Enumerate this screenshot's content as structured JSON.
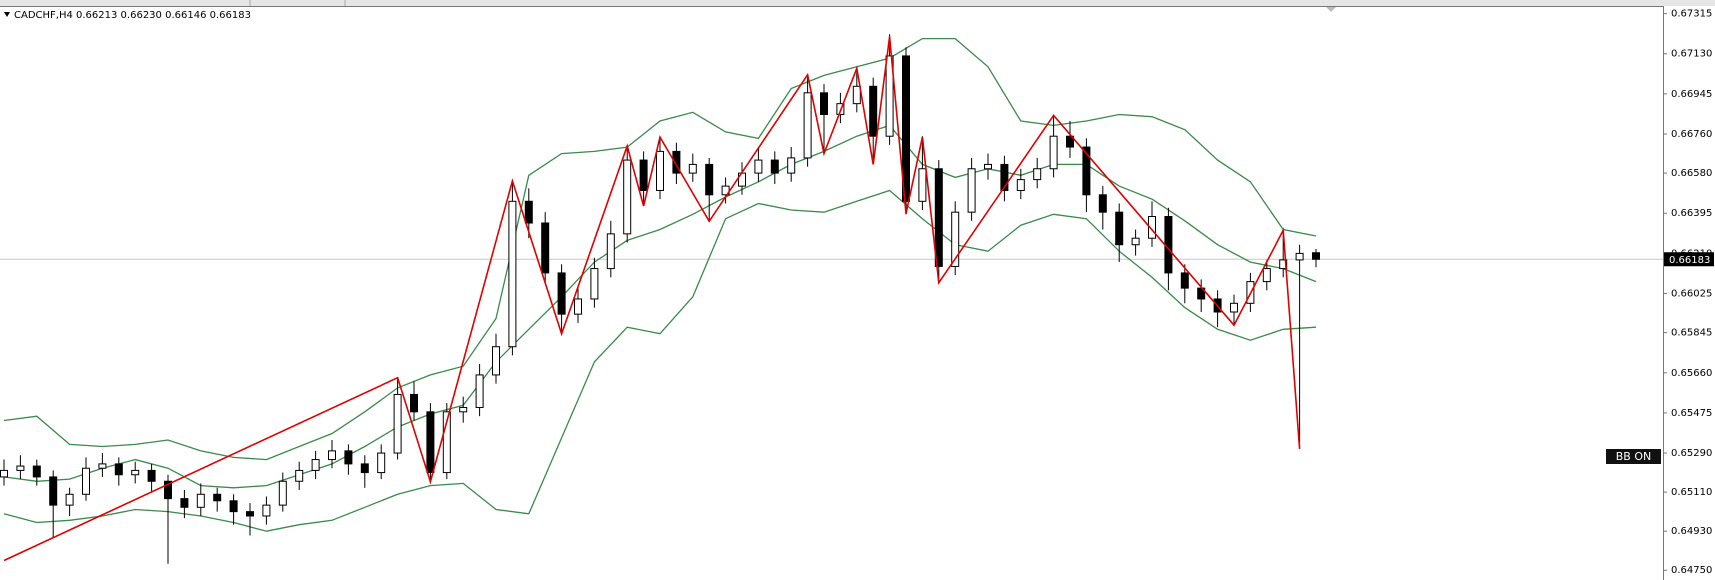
{
  "chart_data": {
    "type": "candlestick",
    "title": "CADCHF,H4  0.66213 0.66230 0.66146 0.66183",
    "badge": "BB ON",
    "last_price": 0.66183,
    "ylim": [
      0.64705,
      0.6735
    ],
    "yticks": [
      0.67315,
      {
        "value": 0.6713,
        "label": "0.67130"
      },
      0.66945,
      {
        "value": 0.6676,
        "label": "0.66760"
      },
      {
        "value": 0.6658,
        "label": "0.66580"
      },
      0.66395,
      {
        "value": 0.6621,
        "label": "0.66210"
      },
      0.66025,
      0.65845,
      {
        "value": 0.6566,
        "label": "0.65660"
      },
      0.65475,
      {
        "value": 0.6529,
        "label": "0.65290"
      },
      {
        "value": 0.6511,
        "label": "0.65110"
      },
      {
        "value": 0.6493,
        "label": "0.64930"
      },
      {
        "value": 0.6475,
        "label": "0.64750"
      }
    ],
    "bull_color": "#ffffff",
    "bear_color": "#000000",
    "zigzag_color": "#e00000",
    "band_color": "#3a8a4a",
    "ohlc": [
      [
        0.6518,
        0.6526,
        0.6514,
        0.6521
      ],
      [
        0.6521,
        0.6528,
        0.6517,
        0.6523
      ],
      [
        0.6523,
        0.6526,
        0.6514,
        0.6518
      ],
      [
        0.6518,
        0.6521,
        0.649,
        0.6505
      ],
      [
        0.6505,
        0.6513,
        0.65,
        0.651
      ],
      [
        0.651,
        0.6527,
        0.6507,
        0.6522
      ],
      [
        0.6522,
        0.6529,
        0.6518,
        0.6524
      ],
      [
        0.6524,
        0.6527,
        0.6514,
        0.6519
      ],
      [
        0.6519,
        0.6525,
        0.6515,
        0.6521
      ],
      [
        0.6521,
        0.6524,
        0.6511,
        0.6516
      ],
      [
        0.6516,
        0.6519,
        0.6478,
        0.6508
      ],
      [
        0.6508,
        0.6512,
        0.6499,
        0.6504
      ],
      [
        0.6504,
        0.6515,
        0.65,
        0.651
      ],
      [
        0.651,
        0.6513,
        0.6502,
        0.6507
      ],
      [
        0.6507,
        0.651,
        0.6496,
        0.6502
      ],
      [
        0.6502,
        0.6506,
        0.6491,
        0.65
      ],
      [
        0.65,
        0.6509,
        0.6496,
        0.6505
      ],
      [
        0.6505,
        0.652,
        0.6502,
        0.6516
      ],
      [
        0.6516,
        0.6525,
        0.6512,
        0.6521
      ],
      [
        0.6521,
        0.653,
        0.6517,
        0.6526
      ],
      [
        0.6526,
        0.6535,
        0.6522,
        0.653
      ],
      [
        0.653,
        0.6533,
        0.6519,
        0.6524
      ],
      [
        0.6524,
        0.6528,
        0.6513,
        0.652
      ],
      [
        0.652,
        0.6533,
        0.6517,
        0.6529
      ],
      [
        0.6529,
        0.6564,
        0.6526,
        0.6556
      ],
      [
        0.6556,
        0.6562,
        0.6544,
        0.6548
      ],
      [
        0.6548,
        0.6552,
        0.6515,
        0.652
      ],
      [
        0.652,
        0.6552,
        0.6517,
        0.6548
      ],
      [
        0.6548,
        0.6555,
        0.6543,
        0.655
      ],
      [
        0.655,
        0.657,
        0.6546,
        0.6565
      ],
      [
        0.6565,
        0.6584,
        0.6561,
        0.6578
      ],
      [
        0.6578,
        0.6654,
        0.6574,
        0.6645
      ],
      [
        0.6645,
        0.6651,
        0.6628,
        0.6635
      ],
      [
        0.6635,
        0.664,
        0.6607,
        0.6612
      ],
      [
        0.6612,
        0.6616,
        0.6584,
        0.6593
      ],
      [
        0.6593,
        0.6606,
        0.6589,
        0.66
      ],
      [
        0.66,
        0.6619,
        0.6596,
        0.6614
      ],
      [
        0.6614,
        0.6636,
        0.661,
        0.663
      ],
      [
        0.663,
        0.667,
        0.6626,
        0.6664
      ],
      [
        0.6664,
        0.6668,
        0.6643,
        0.665
      ],
      [
        0.665,
        0.6674,
        0.6646,
        0.6668
      ],
      [
        0.6668,
        0.6672,
        0.6653,
        0.6658
      ],
      [
        0.6658,
        0.6667,
        0.6654,
        0.6662
      ],
      [
        0.6662,
        0.6665,
        0.6636,
        0.6648
      ],
      [
        0.6648,
        0.6656,
        0.6644,
        0.6652
      ],
      [
        0.6652,
        0.6663,
        0.6648,
        0.6658
      ],
      [
        0.6658,
        0.667,
        0.6654,
        0.6664
      ],
      [
        0.6664,
        0.6668,
        0.6653,
        0.6658
      ],
      [
        0.6658,
        0.667,
        0.6654,
        0.6665
      ],
      [
        0.6665,
        0.6703,
        0.6661,
        0.6695
      ],
      [
        0.6695,
        0.6699,
        0.6667,
        0.6685
      ],
      [
        0.6685,
        0.6695,
        0.6681,
        0.669
      ],
      [
        0.669,
        0.6706,
        0.6686,
        0.6698
      ],
      [
        0.6698,
        0.6702,
        0.6662,
        0.6675
      ],
      [
        0.6675,
        0.6722,
        0.6671,
        0.6712
      ],
      [
        0.6712,
        0.6716,
        0.6639,
        0.6645
      ],
      [
        0.6645,
        0.6675,
        0.6641,
        0.666
      ],
      [
        0.666,
        0.6664,
        0.6607,
        0.6615
      ],
      [
        0.6615,
        0.6645,
        0.6611,
        0.664
      ],
      [
        0.664,
        0.6665,
        0.6636,
        0.666
      ],
      [
        0.666,
        0.6667,
        0.6655,
        0.6662
      ],
      [
        0.6662,
        0.6666,
        0.6645,
        0.665
      ],
      [
        0.665,
        0.666,
        0.6646,
        0.6655
      ],
      [
        0.6655,
        0.6665,
        0.6651,
        0.666
      ],
      [
        0.666,
        0.6685,
        0.6656,
        0.6675
      ],
      [
        0.6675,
        0.6682,
        0.6665,
        0.667
      ],
      [
        0.667,
        0.6674,
        0.664,
        0.6648
      ],
      [
        0.6648,
        0.6652,
        0.6632,
        0.664
      ],
      [
        0.664,
        0.6644,
        0.6617,
        0.6625
      ],
      [
        0.6625,
        0.6632,
        0.662,
        0.6628
      ],
      [
        0.6628,
        0.6645,
        0.6624,
        0.6638
      ],
      [
        0.6638,
        0.6642,
        0.6604,
        0.6612
      ],
      [
        0.6612,
        0.6616,
        0.6598,
        0.6605
      ],
      [
        0.6605,
        0.6609,
        0.6594,
        0.66
      ],
      [
        0.66,
        0.6604,
        0.6587,
        0.6594
      ],
      [
        0.6594,
        0.6602,
        0.6588,
        0.6598
      ],
      [
        0.6598,
        0.6612,
        0.6594,
        0.6608
      ],
      [
        0.6608,
        0.6618,
        0.6604,
        0.6614
      ],
      [
        0.6614,
        0.6632,
        0.661,
        0.6618
      ],
      [
        0.6618,
        0.6625,
        0.6531,
        0.6621
      ],
      [
        0.66213,
        0.6623,
        0.66146,
        0.66183
      ]
    ],
    "bb_x": [
      0,
      2,
      4,
      6,
      8,
      10,
      12,
      14,
      16,
      18,
      20,
      22,
      24,
      26,
      28,
      30,
      32,
      34,
      36,
      38,
      40,
      42,
      44,
      46,
      48,
      50,
      52,
      54,
      56,
      58,
      60,
      62,
      64,
      66,
      68,
      70,
      72,
      74,
      76,
      78,
      80
    ],
    "bb_upper": [
      0.6544,
      0.6546,
      0.6533,
      0.6532,
      0.6533,
      0.6535,
      0.653,
      0.6527,
      0.6526,
      0.6532,
      0.6538,
      0.6548,
      0.6559,
      0.6565,
      0.6569,
      0.6591,
      0.6657,
      0.6667,
      0.6668,
      0.667,
      0.6682,
      0.6686,
      0.6677,
      0.6674,
      0.6697,
      0.6703,
      0.6707,
      0.6711,
      0.672,
      0.672,
      0.6707,
      0.6682,
      0.668,
      0.6682,
      0.6685,
      0.6684,
      0.6678,
      0.6664,
      0.6654,
      0.6632,
      0.6629
    ],
    "bb_middle": [
      0.6518,
      0.6516,
      0.6517,
      0.6522,
      0.6526,
      0.6522,
      0.6514,
      0.6513,
      0.6514,
      0.6519,
      0.6524,
      0.6532,
      0.6541,
      0.6547,
      0.6551,
      0.6571,
      0.6586,
      0.6601,
      0.6617,
      0.6627,
      0.6632,
      0.6639,
      0.6647,
      0.6654,
      0.6662,
      0.6668,
      0.6675,
      0.668,
      0.6662,
      0.6656,
      0.666,
      0.6657,
      0.6662,
      0.6662,
      0.6652,
      0.6646,
      0.6636,
      0.6625,
      0.6617,
      0.6614,
      0.6608
    ],
    "bb_lower": [
      0.6501,
      0.6497,
      0.6498,
      0.65,
      0.6503,
      0.6502,
      0.65,
      0.6497,
      0.6493,
      0.6496,
      0.6498,
      0.6504,
      0.651,
      0.6514,
      0.6515,
      0.6503,
      0.6501,
      0.6536,
      0.6571,
      0.6587,
      0.6584,
      0.6601,
      0.6637,
      0.6644,
      0.6641,
      0.664,
      0.6645,
      0.665,
      0.6637,
      0.6625,
      0.6622,
      0.6634,
      0.6639,
      0.6637,
      0.6622,
      0.661,
      0.6596,
      0.6586,
      0.6581,
      0.6586,
      0.6587
    ],
    "zigzag_x": [
      0,
      24,
      26,
      31,
      34,
      38,
      39,
      40,
      43,
      49,
      50,
      52,
      53,
      54,
      55,
      56,
      57,
      64,
      75,
      78,
      79
    ],
    "zigzag_values": [
      0.64795,
      0.65637,
      0.65158,
      0.66544,
      0.65839,
      0.66705,
      0.66428,
      0.66746,
      0.66358,
      0.67033,
      0.6667,
      0.67063,
      0.6662,
      0.67209,
      0.66393,
      0.66746,
      0.66075,
      0.66846,
      0.65879,
      0.66317,
      0.65309
    ]
  }
}
